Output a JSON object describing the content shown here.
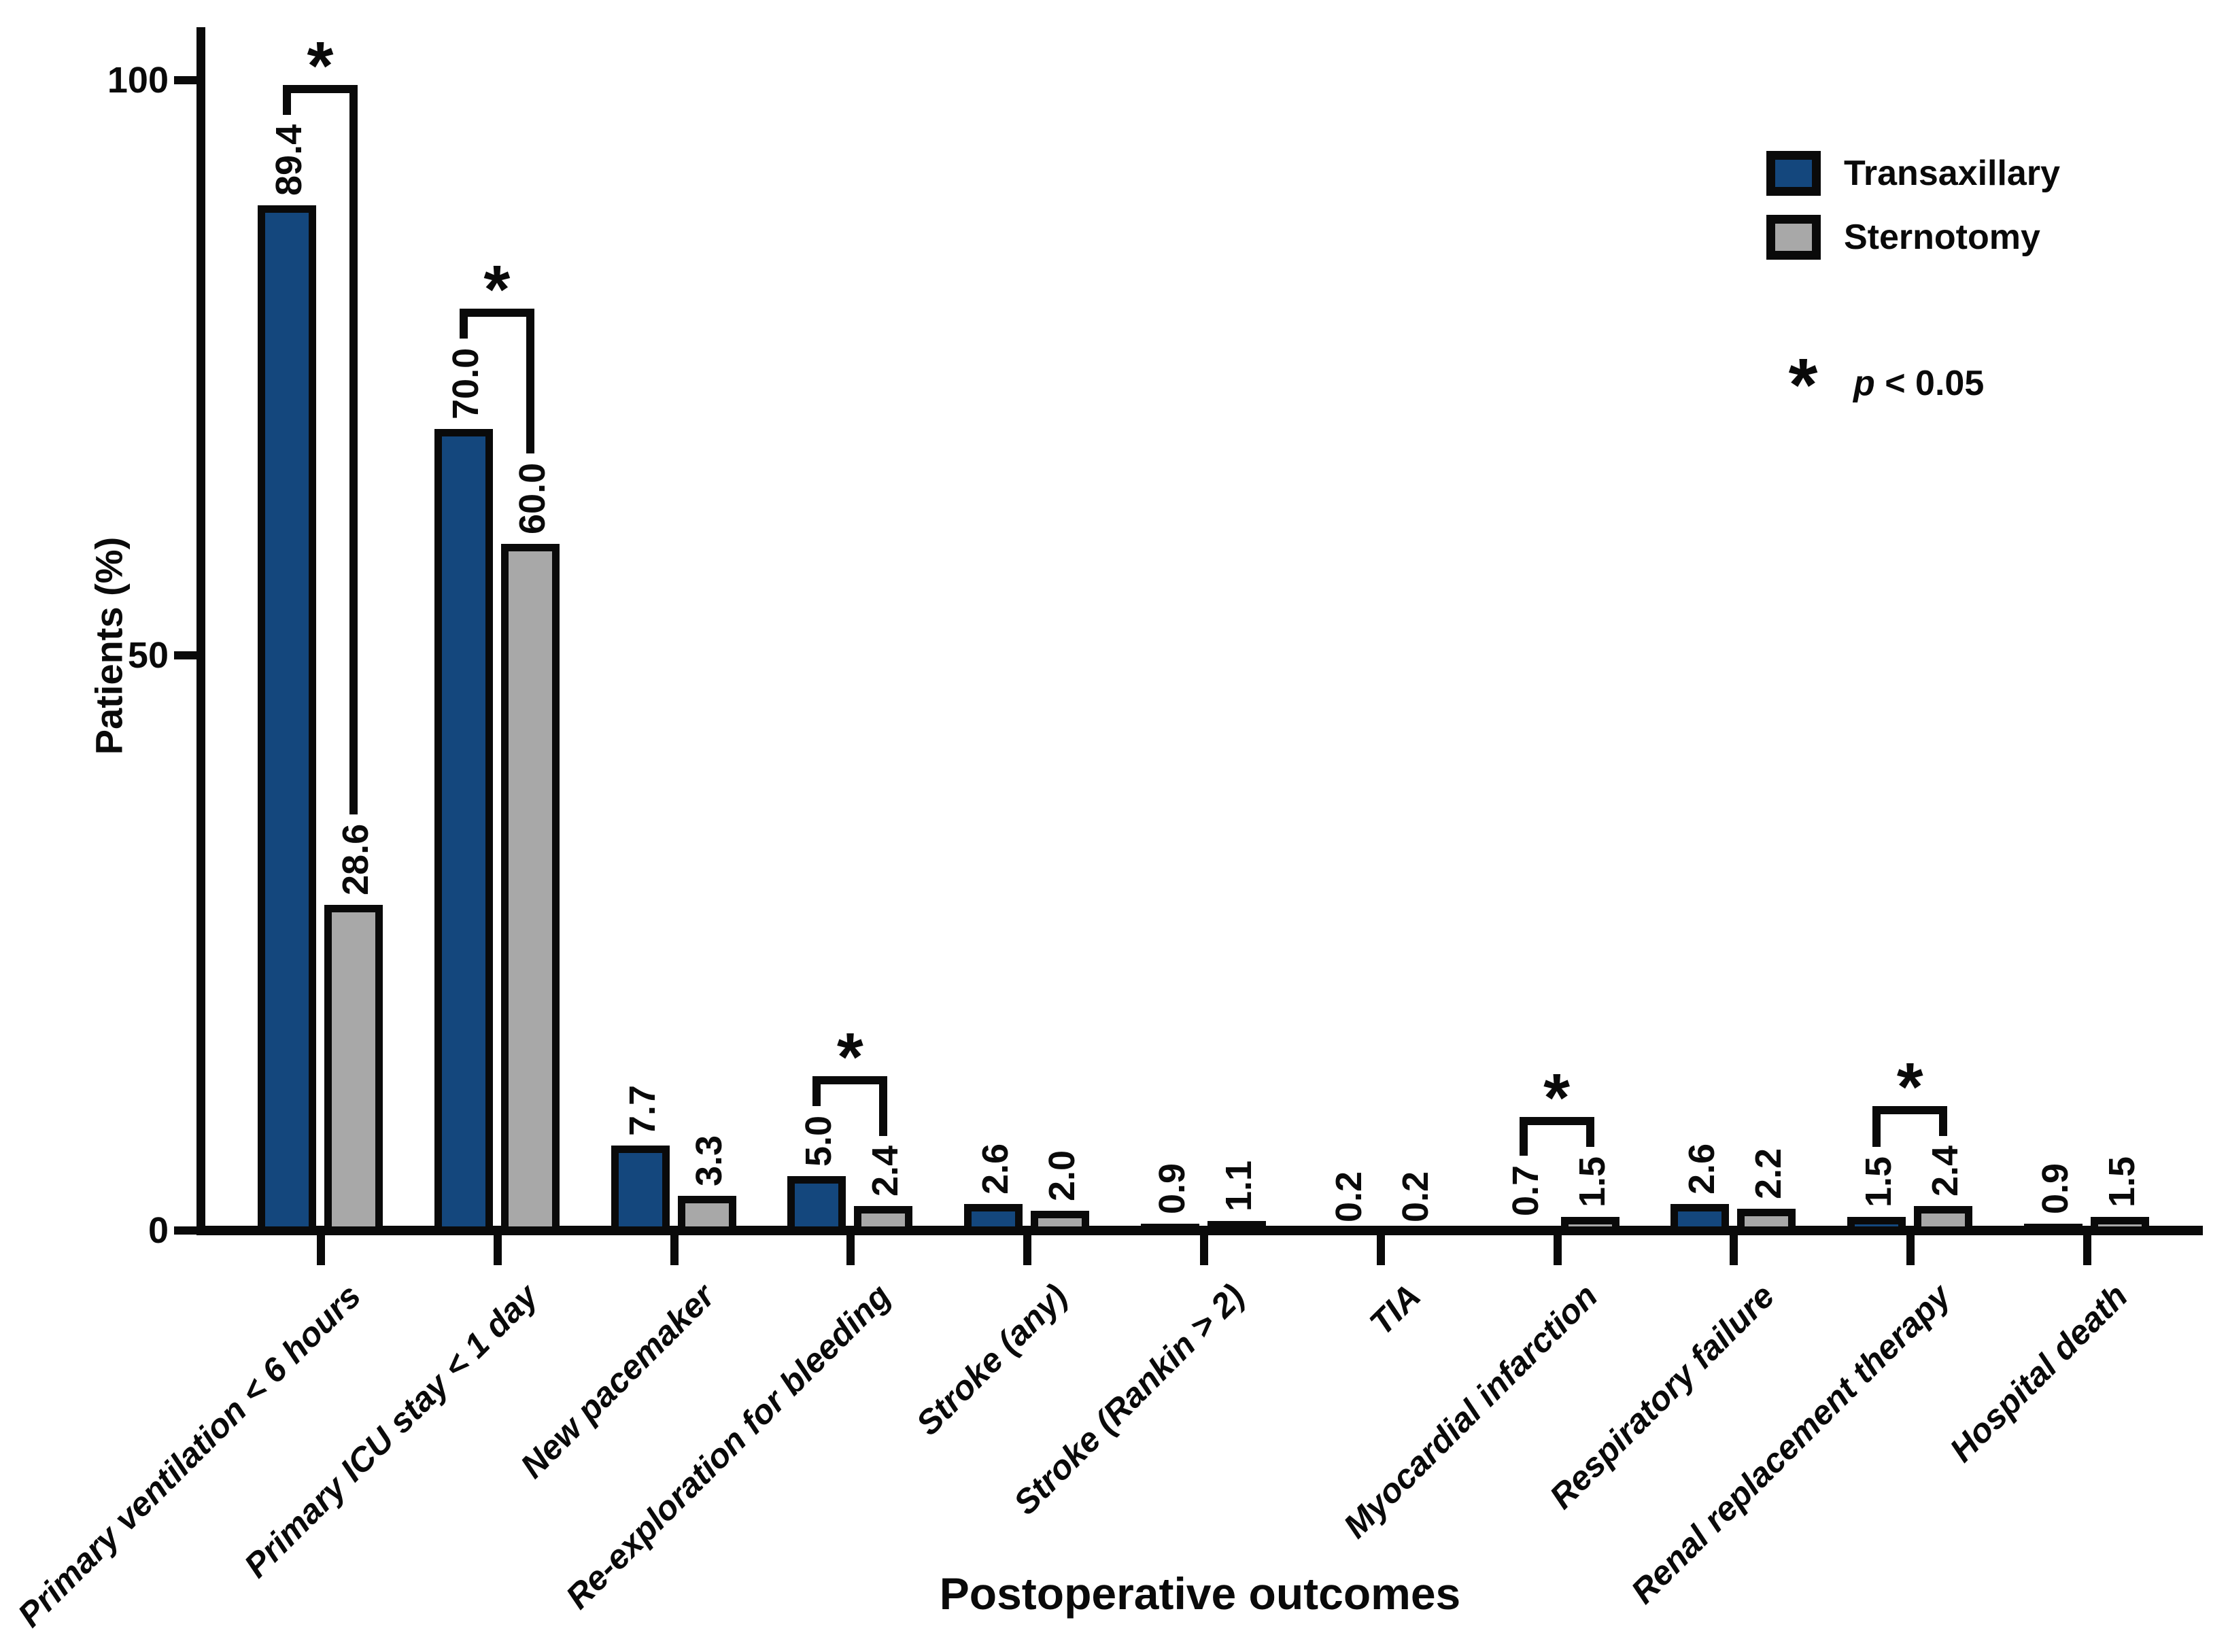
{
  "figure": {
    "ylabel": "Patients (%)",
    "xtitle": "Postoperative outcomes",
    "legend": {
      "series": [
        {
          "label": "Transaxillary",
          "color": "#14477D"
        },
        {
          "label": "Sternotomy",
          "color": "#A8A8A8"
        }
      ],
      "sig_symbol": "*",
      "sig_p": "p",
      "sig_rest": " < 0.05"
    }
  },
  "chart_data": {
    "type": "bar",
    "title": "",
    "xlabel": "Postoperative outcomes",
    "ylabel": "Patients (%)",
    "ylim": [
      0,
      100
    ],
    "yticks": [
      0,
      50,
      100
    ],
    "grid": false,
    "legend_position": "top-right",
    "categories": [
      "Primary ventilation < 6 hours",
      "Primary ICU stay < 1 day",
      "New pacemaker",
      "Re-exploration for bleeding",
      "Stroke (any)",
      "Stroke (Rankin > 2)",
      "TIA",
      "Myocardial infarction",
      "Respiratory failure",
      "Renal replacement therapy",
      "Hospital death"
    ],
    "series": [
      {
        "name": "Transaxillary",
        "color": "#14477D",
        "values": [
          89.4,
          70.0,
          7.7,
          5.0,
          2.6,
          0.9,
          0.2,
          0.7,
          2.6,
          1.5,
          0.9
        ]
      },
      {
        "name": "Sternotomy",
        "color": "#A8A8A8",
        "values": [
          28.6,
          60.0,
          3.3,
          2.4,
          2.0,
          1.1,
          0.2,
          1.5,
          2.2,
          2.4,
          1.5
        ]
      }
    ],
    "significant": [
      true,
      true,
      false,
      true,
      false,
      false,
      false,
      true,
      false,
      true,
      false
    ],
    "sig_note": "p < 0.05"
  }
}
